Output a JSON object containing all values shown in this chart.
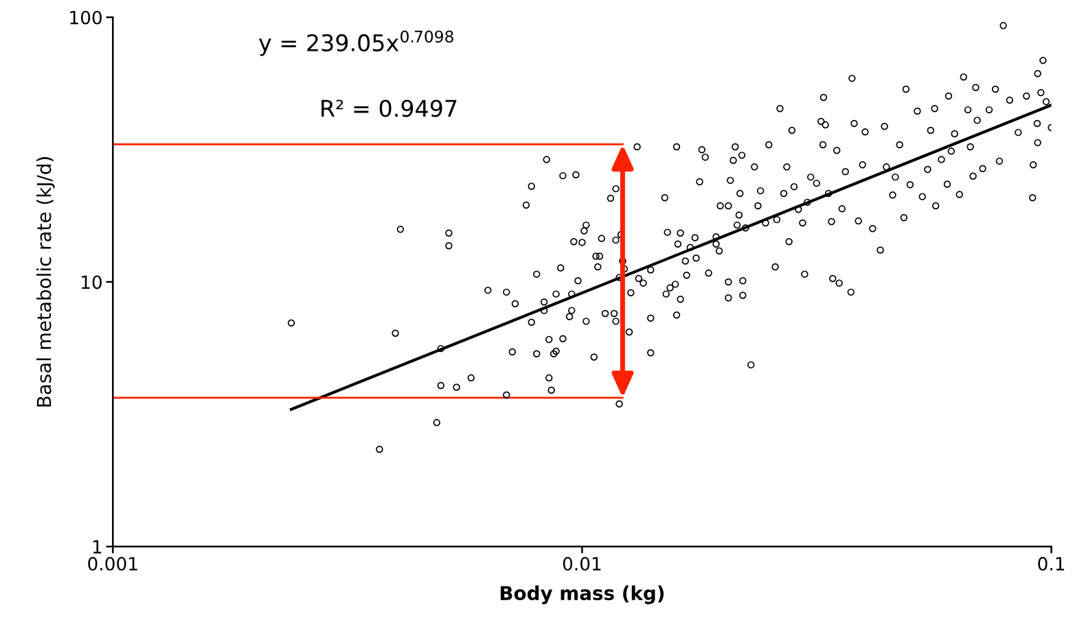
{
  "chart_data": {
    "type": "scatter",
    "xlabel": "Body mass (kg)",
    "ylabel": "Basal metabolic rate (kJ/d)",
    "log": "xy",
    "xlim": [
      0.001,
      0.1
    ],
    "ylim": [
      1,
      100
    ],
    "xticks": [
      0.001,
      0.01,
      0.1
    ],
    "yticks": [
      1,
      10,
      100
    ],
    "grid": false,
    "legend": false,
    "annotations": [
      "y = 239.05x$^{0.7098}$",
      "R² = 0.9497"
    ],
    "series": [
      {
        "color": "#000000",
        "marker": "circle",
        "x": [
          0.0024,
          0.004,
          0.0041,
          0.0037,
          0.0049,
          0.005,
          0.005,
          0.0052,
          0.0052,
          0.0054,
          0.0058,
          0.0063,
          0.0069,
          0.0069,
          0.0072,
          0.0071,
          0.0076,
          0.0078,
          0.0078,
          0.008,
          0.008,
          0.0083,
          0.0083,
          0.0084,
          0.0085,
          0.0085,
          0.0086,
          0.0087,
          0.0088,
          0.0088,
          0.009,
          0.0091,
          0.0091,
          0.0094,
          0.0095,
          0.0095,
          0.0096,
          0.0097,
          0.0098,
          0.01,
          0.0101,
          0.0102,
          0.0102,
          0.0106,
          0.0107,
          0.0108,
          0.0109,
          0.011,
          0.0112,
          0.0115,
          0.0117,
          0.0118,
          0.0118,
          0.0118,
          0.012,
          0.012,
          0.0121,
          0.0122,
          0.0123,
          0.0126,
          0.0127,
          0.0131,
          0.0132,
          0.0135,
          0.014,
          0.014,
          0.014,
          0.015,
          0.0151,
          0.0152,
          0.0154,
          0.0158,
          0.0159,
          0.0159,
          0.016,
          0.0162,
          0.0162,
          0.0166,
          0.0167,
          0.017,
          0.0174,
          0.0175,
          0.0178,
          0.018,
          0.0183,
          0.0186,
          0.0193,
          0.0193,
          0.0196,
          0.0197,
          0.0205,
          0.0205,
          0.0205,
          0.0207,
          0.021,
          0.0212,
          0.0214,
          0.0216,
          0.0217,
          0.0219,
          0.022,
          0.022,
          0.0223,
          0.0229,
          0.0233,
          0.0237,
          0.024,
          0.0246,
          0.025,
          0.0258,
          0.026,
          0.0264,
          0.0269,
          0.0273,
          0.0276,
          0.028,
          0.0283,
          0.0289,
          0.0295,
          0.0298,
          0.0302,
          0.0307,
          0.0316,
          0.0323,
          0.0327,
          0.0326,
          0.033,
          0.0335,
          0.034,
          0.0342,
          0.0349,
          0.0353,
          0.0358,
          0.0364,
          0.0374,
          0.0376,
          0.038,
          0.0388,
          0.0396,
          0.0401,
          0.0416,
          0.0432,
          0.0441,
          0.0445,
          0.0459,
          0.0465,
          0.0475,
          0.0485,
          0.049,
          0.05,
          0.0518,
          0.0531,
          0.0545,
          0.0553,
          0.0564,
          0.0567,
          0.0583,
          0.06,
          0.0604,
          0.0612,
          0.0622,
          0.0637,
          0.065,
          0.0664,
          0.0672,
          0.0681,
          0.069,
          0.0695,
          0.0714,
          0.0737,
          0.076,
          0.0775,
          0.079,
          0.0815,
          0.085,
          0.0885,
          0.0912,
          0.0915,
          0.0933,
          0.0935,
          0.0935,
          0.095,
          0.096,
          0.0975,
          0.1
        ],
        "values": [
          7.0,
          6.4,
          15.8,
          2.33,
          2.94,
          5.6,
          4.06,
          15.3,
          13.7,
          4.0,
          4.34,
          9.3,
          9.15,
          3.74,
          8.27,
          5.44,
          19.5,
          23,
          7.04,
          10.7,
          5.35,
          8.4,
          7.8,
          29,
          6.06,
          4.34,
          3.9,
          5.35,
          5.47,
          9.0,
          11.3,
          25.2,
          6.1,
          7.4,
          7.8,
          9.0,
          14.2,
          25.4,
          10.1,
          14.1,
          15.6,
          16.4,
          7.1,
          5.2,
          12.5,
          11.4,
          12.5,
          14.6,
          7.6,
          20.7,
          7.6,
          7.1,
          22.5,
          14.4,
          3.46,
          10.4,
          15.1,
          12.0,
          11.2,
          6.47,
          9.1,
          32.4,
          10.3,
          9.9,
          7.3,
          5.4,
          11.1,
          20.8,
          9.0,
          15.4,
          9.5,
          9.8,
          32.4,
          7.5,
          13.9,
          8.6,
          15.3,
          12.0,
          10.6,
          13.5,
          14.7,
          12.3,
          23.9,
          31.6,
          29.6,
          10.8,
          14.8,
          13.9,
          13.1,
          19.4,
          10.0,
          8.7,
          19.4,
          24.2,
          28.8,
          32.4,
          16.4,
          17.9,
          21.6,
          30.1,
          10.1,
          8.9,
          16.0,
          4.86,
          27.2,
          19.4,
          22.1,
          16.7,
          33.0,
          11.4,
          17.2,
          45.2,
          21.6,
          27.2,
          14.2,
          37.4,
          22.9,
          18.8,
          16.7,
          10.7,
          20.0,
          24.9,
          23.6,
          40.4,
          49.8,
          33.0,
          39.2,
          21.6,
          16.9,
          10.3,
          31.4,
          9.9,
          18.9,
          26.1,
          9.15,
          58.8,
          39.7,
          17.0,
          27.7,
          36.9,
          15.9,
          13.2,
          38.7,
          27.2,
          21.3,
          24.9,
          33.0,
          17.5,
          53.5,
          23.3,
          44.2,
          21.0,
          26.6,
          37.4,
          45.2,
          19.4,
          29.0,
          23.4,
          50.4,
          31.2,
          36.3,
          21.4,
          59.5,
          44.7,
          32.4,
          25.1,
          54.3,
          40.8,
          26.8,
          44.7,
          53.5,
          28.6,
          93,
          48.6,
          36.7,
          50.4,
          20.8,
          27.7,
          39.7,
          61.3,
          33.6,
          51.9,
          68.7,
          48.0,
          38.3
        ]
      },
      {
        "type": "line",
        "color": "#000000",
        "x": [
          0.0024,
          0.1
        ],
        "values": [
          3.3,
          46.6
        ]
      },
      {
        "type": "line",
        "color": "#ff2200",
        "x": [
          0.001,
          0.0122
        ],
        "values": [
          33.1,
          33.1
        ]
      },
      {
        "type": "line",
        "color": "#ff2200",
        "x": [
          0.001,
          0.0122
        ],
        "values": [
          3.65,
          3.65
        ]
      }
    ]
  }
}
